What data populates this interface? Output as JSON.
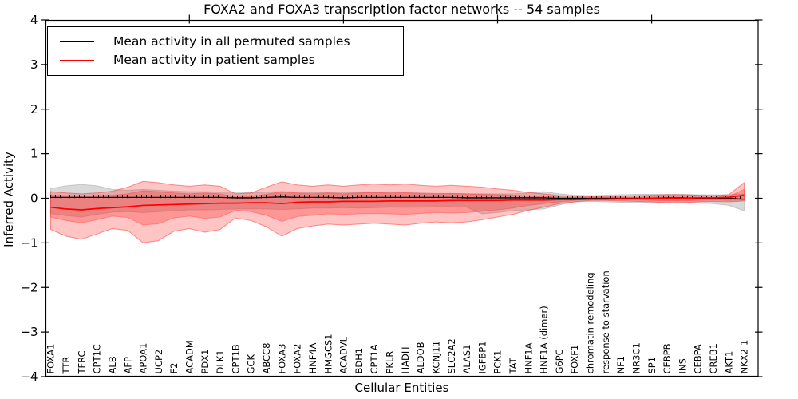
{
  "chart_data": {
    "type": "line",
    "title": "FOXA2 and FOXA3 transcription factor networks -- 54 samples",
    "xlabel": "Cellular Entities",
    "ylabel": "Inferred Activity",
    "ylim": [
      -4,
      4
    ],
    "grid": false,
    "legend": {
      "position": "upper left",
      "entries": [
        {
          "label": "Mean activity in all permuted samples",
          "color": "#000000"
        },
        {
          "label": "Mean activity in patient samples",
          "color": "#ff0000"
        }
      ]
    },
    "yticks": {
      "values": [
        4,
        3,
        2,
        1,
        0,
        -1,
        -2,
        -3,
        -4
      ],
      "labels": [
        "4",
        "3",
        "2",
        "1",
        "0",
        "−1",
        "−2",
        "−3",
        "−4"
      ]
    },
    "xticks_top_values": [
      10,
      20,
      30,
      40
    ],
    "categories": [
      "FOXA1",
      "TTR",
      "TFRC",
      "CPT1C",
      "ALB",
      "AFP",
      "APOA1",
      "UCP2",
      "F2",
      "ACADM",
      "PDX1",
      "DLK1",
      "CPT1B",
      "GCK",
      "ABCC8",
      "FOXA3",
      "FOXA2",
      "HNF4A",
      "HMGCS1",
      "ACADVL",
      "BDH1",
      "CPT1A",
      "PKLR",
      "HADH",
      "ALDOB",
      "KCNJ11",
      "SLC2A2",
      "ALAS1",
      "IGFBP1",
      "PCK1",
      "TAT",
      "HNF1A",
      "HNF1A (dimer)",
      "G6PC",
      "FOXF1",
      "chromatin remodeling",
      "response to starvation",
      "NF1",
      "NR3C1",
      "SP1",
      "CEBPB",
      "INS",
      "CEBPA",
      "CREB1",
      "AKT1",
      "NKX2-1"
    ],
    "series": [
      {
        "name": "Mean activity in all permuted samples",
        "color": "#000000",
        "marker": "tick",
        "values": [
          0.02,
          0.02,
          0.02,
          0.02,
          0.02,
          0.02,
          0.02,
          0.02,
          0.02,
          0.02,
          0.02,
          0.02,
          0.01,
          0.01,
          0.02,
          0.03,
          0.02,
          0.02,
          0.02,
          0.01,
          0.02,
          0.02,
          0.02,
          0.02,
          0.02,
          0.02,
          0.02,
          0.01,
          0.01,
          0.01,
          0.01,
          0.01,
          0.01,
          0.0,
          0.0,
          0.0,
          0.0,
          0.0,
          0.0,
          0.0,
          0.01,
          0.01,
          0.0,
          0.0,
          0.0,
          -0.02
        ]
      },
      {
        "name": "Mean activity in patient samples",
        "color": "#ff0000",
        "marker": "none",
        "values": [
          -0.2,
          -0.24,
          -0.26,
          -0.23,
          -0.21,
          -0.19,
          -0.16,
          -0.15,
          -0.14,
          -0.13,
          -0.12,
          -0.11,
          -0.11,
          -0.1,
          -0.1,
          -0.12,
          -0.09,
          -0.08,
          -0.08,
          -0.07,
          -0.07,
          -0.07,
          -0.06,
          -0.06,
          -0.06,
          -0.06,
          -0.05,
          -0.05,
          -0.05,
          -0.05,
          -0.04,
          -0.04,
          -0.04,
          -0.03,
          -0.03,
          -0.02,
          -0.02,
          -0.01,
          -0.01,
          0.0,
          0.0,
          0.0,
          0.01,
          0.01,
          0.02,
          0.07
        ]
      }
    ],
    "bands": [
      {
        "name": "permuted-samples-spread",
        "color": "#aaaaaa",
        "fill_opacity": 0.45,
        "edge_opacity": 0.55,
        "upper": [
          0.22,
          0.28,
          0.31,
          0.28,
          0.2,
          0.18,
          0.2,
          0.18,
          0.16,
          0.15,
          0.15,
          0.14,
          0.14,
          0.13,
          0.14,
          0.15,
          0.14,
          0.13,
          0.13,
          0.12,
          0.13,
          0.13,
          0.12,
          0.12,
          0.12,
          0.11,
          0.11,
          0.1,
          0.1,
          0.1,
          0.1,
          0.12,
          0.15,
          0.1,
          0.07,
          0.06,
          0.07,
          0.08,
          0.09,
          0.09,
          0.09,
          0.09,
          0.08,
          0.08,
          0.08,
          0.1
        ],
        "lower": [
          -0.34,
          -0.39,
          -0.42,
          -0.36,
          -0.31,
          -0.3,
          -0.32,
          -0.3,
          -0.28,
          -0.26,
          -0.26,
          -0.25,
          -0.24,
          -0.24,
          -0.24,
          -0.25,
          -0.24,
          -0.22,
          -0.22,
          -0.21,
          -0.22,
          -0.21,
          -0.2,
          -0.2,
          -0.2,
          -0.19,
          -0.19,
          -0.2,
          -0.35,
          -0.32,
          -0.28,
          -0.26,
          -0.24,
          -0.15,
          -0.08,
          -0.07,
          -0.08,
          -0.09,
          -0.1,
          -0.1,
          -0.11,
          -0.11,
          -0.11,
          -0.12,
          -0.16,
          -0.28
        ]
      },
      {
        "name": "patient-samples-outer-spread",
        "color": "#ff2a2a",
        "fill_opacity": 0.28,
        "edge_opacity": 0.5,
        "upper": [
          0.15,
          0.12,
          0.1,
          0.12,
          0.16,
          0.25,
          0.38,
          0.35,
          0.3,
          0.27,
          0.3,
          0.27,
          0.1,
          0.12,
          0.25,
          0.37,
          0.3,
          0.27,
          0.3,
          0.27,
          0.3,
          0.32,
          0.3,
          0.32,
          0.29,
          0.27,
          0.29,
          0.27,
          0.25,
          0.21,
          0.18,
          0.13,
          0.1,
          0.06,
          0.05,
          0.04,
          0.04,
          0.05,
          0.06,
          0.07,
          0.08,
          0.08,
          0.07,
          0.06,
          0.08,
          0.35
        ],
        "lower": [
          -0.7,
          -0.85,
          -0.92,
          -0.8,
          -0.68,
          -0.72,
          -1.0,
          -0.95,
          -0.74,
          -0.68,
          -0.76,
          -0.7,
          -0.44,
          -0.5,
          -0.64,
          -0.85,
          -0.68,
          -0.62,
          -0.58,
          -0.6,
          -0.58,
          -0.56,
          -0.58,
          -0.6,
          -0.56,
          -0.53,
          -0.55,
          -0.53,
          -0.48,
          -0.42,
          -0.36,
          -0.27,
          -0.2,
          -0.12,
          -0.08,
          -0.05,
          -0.05,
          -0.06,
          -0.07,
          -0.08,
          -0.1,
          -0.1,
          -0.08,
          -0.07,
          -0.08,
          -0.06
        ]
      },
      {
        "name": "patient-samples-inner-spread",
        "color": "#ff2a2a",
        "fill_opacity": 0.3,
        "edge_opacity": 0.35,
        "upper": [
          0.07,
          0.06,
          0.05,
          0.06,
          0.07,
          0.1,
          0.17,
          0.15,
          0.12,
          0.1,
          0.12,
          0.1,
          0.03,
          0.04,
          0.09,
          0.15,
          0.12,
          0.1,
          0.12,
          0.1,
          0.12,
          0.13,
          0.12,
          0.13,
          0.11,
          0.1,
          0.11,
          0.1,
          0.09,
          0.08,
          0.07,
          0.05,
          0.04,
          0.03,
          0.02,
          0.02,
          0.02,
          0.02,
          0.02,
          0.03,
          0.03,
          0.03,
          0.03,
          0.02,
          0.04,
          0.2
        ],
        "lower": [
          -0.42,
          -0.5,
          -0.55,
          -0.48,
          -0.4,
          -0.43,
          -0.6,
          -0.57,
          -0.44,
          -0.4,
          -0.45,
          -0.42,
          -0.27,
          -0.3,
          -0.38,
          -0.52,
          -0.41,
          -0.38,
          -0.35,
          -0.36,
          -0.35,
          -0.34,
          -0.35,
          -0.36,
          -0.34,
          -0.32,
          -0.33,
          -0.32,
          -0.29,
          -0.26,
          -0.22,
          -0.16,
          -0.12,
          -0.08,
          -0.05,
          -0.03,
          -0.03,
          -0.04,
          -0.04,
          -0.05,
          -0.06,
          -0.06,
          -0.05,
          -0.04,
          -0.05,
          -0.04
        ]
      }
    ]
  }
}
